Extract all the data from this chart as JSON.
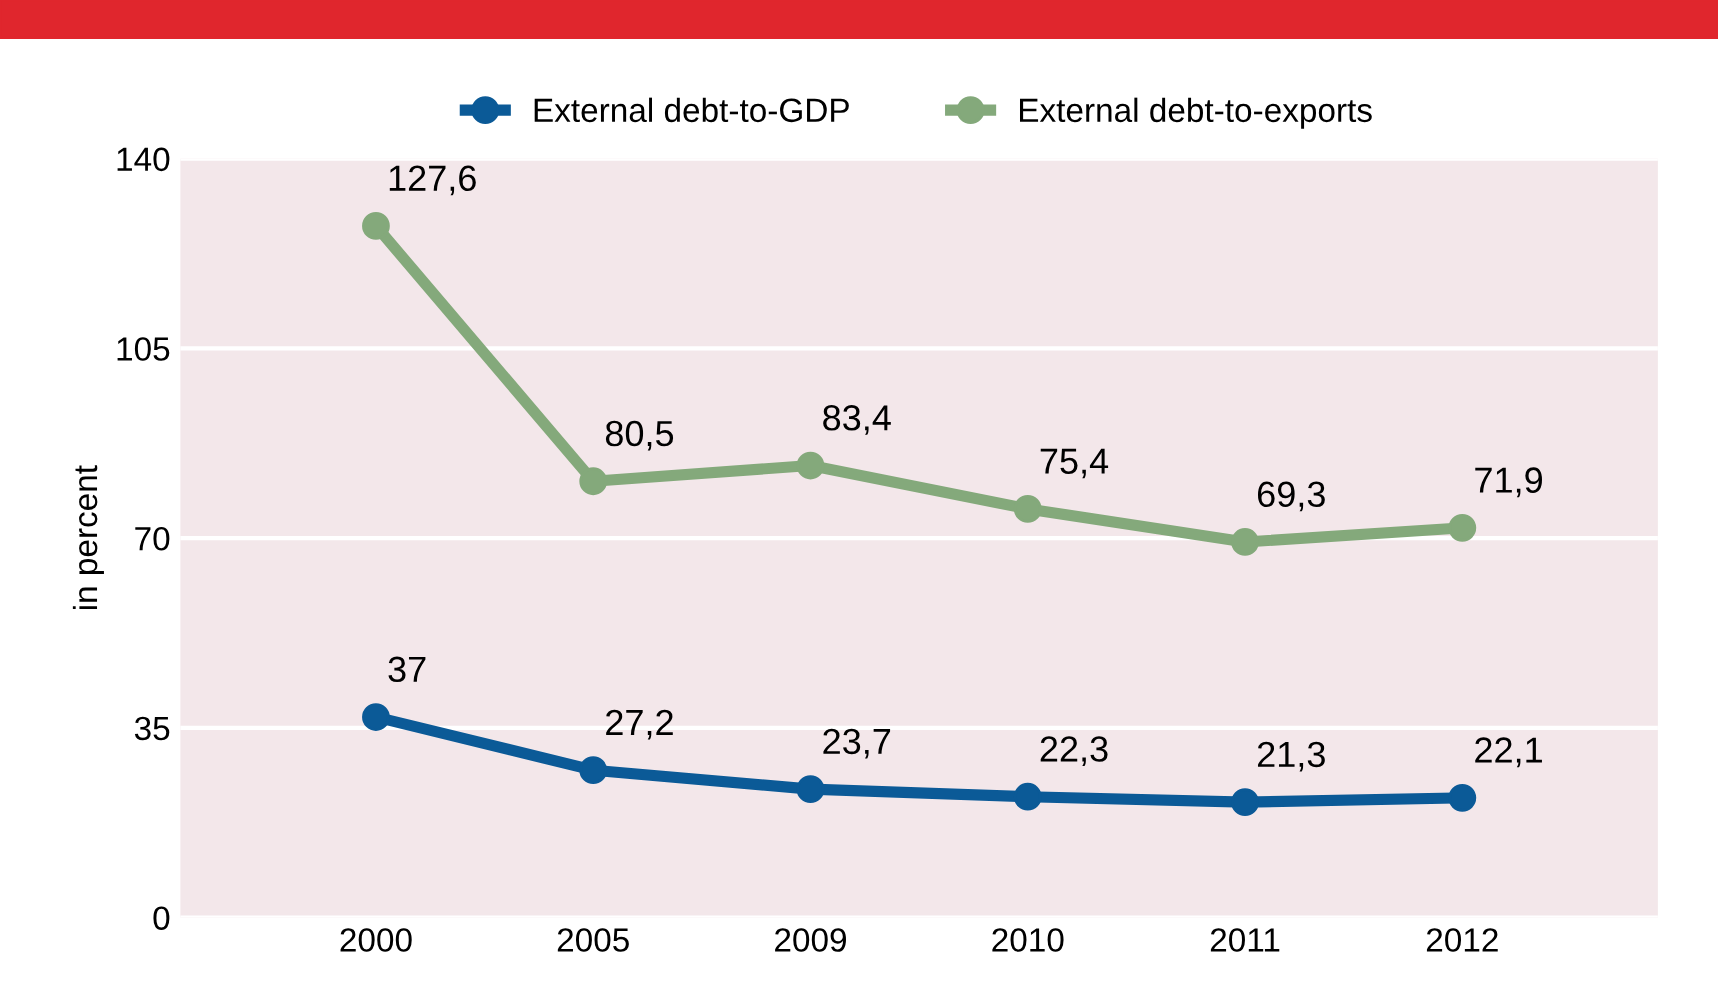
{
  "chart_data": {
    "type": "line",
    "ylabel": "in percent",
    "categories": [
      "2000",
      "2005",
      "2009",
      "2010",
      "2011",
      "2012"
    ],
    "series": [
      {
        "name": "External debt-to-GDP",
        "color": "#0b5a97",
        "values": [
          37,
          27.2,
          23.7,
          22.3,
          21.3,
          22.1
        ],
        "value_labels": [
          "37",
          "27,2",
          "23,7",
          "22,3",
          "21,3",
          "22,1"
        ]
      },
      {
        "name": "External debt-to-exports",
        "color": "#84a97b",
        "values": [
          127.6,
          80.5,
          83.4,
          75.4,
          69.3,
          71.9
        ],
        "value_labels": [
          "127,6",
          "80,5",
          "83,4",
          "75,4",
          "69,3",
          "71,9"
        ]
      }
    ],
    "ylim": [
      0,
      140
    ],
    "yticks": [
      0,
      35,
      70,
      105,
      140
    ],
    "grid": "y",
    "legend": "top",
    "marker": "circle",
    "line_style": "solid"
  }
}
